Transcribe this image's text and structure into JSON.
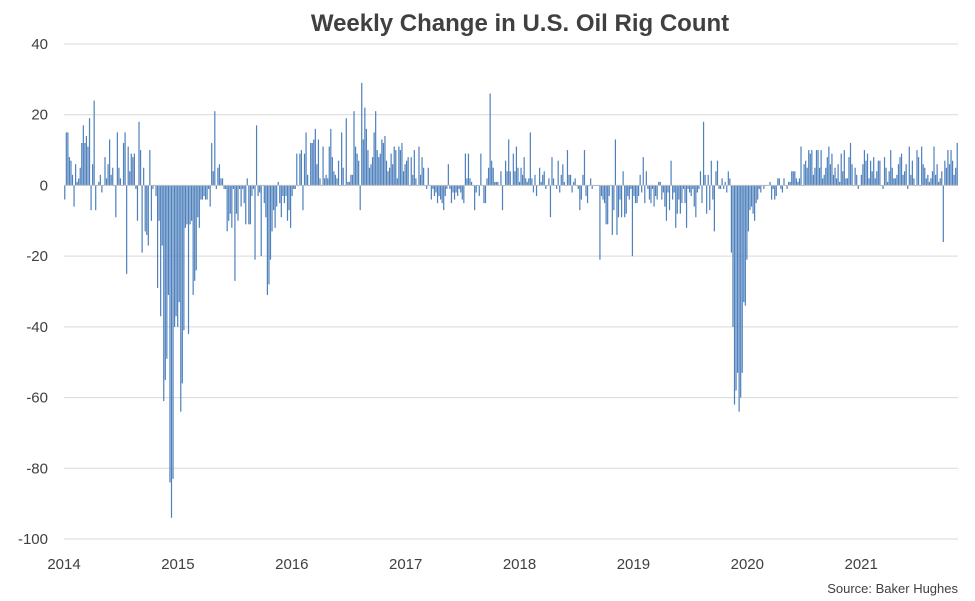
{
  "chart_data": {
    "type": "bar",
    "title": "Weekly Change in U.S. Oil Rig Count",
    "source": "Source: Baker Hughes",
    "xlabel": "",
    "ylabel": "",
    "ylim": [
      -100,
      40
    ],
    "yticks": [
      40,
      20,
      0,
      -20,
      -40,
      -60,
      -80,
      -100
    ],
    "ytick_labels": [
      "40",
      "20",
      "0",
      "-20",
      "-40",
      "-60",
      "-80",
      "-100"
    ],
    "xticks": [
      "2014",
      "2015",
      "2016",
      "2017",
      "2018",
      "2019",
      "2020",
      "2021"
    ],
    "grid": true,
    "legend": "none",
    "colors": {
      "bar": "#4f81bd",
      "grid": "#d9d9d9",
      "axis": "#bfbfbf",
      "text": "#404040"
    },
    "x_start": "2014-01-03",
    "x_interval": "weekly",
    "values": [
      -4,
      15,
      15,
      8,
      7,
      3,
      -6,
      6,
      1,
      2,
      5,
      12,
      17,
      12,
      14,
      11,
      19,
      -7,
      6,
      24,
      -7,
      0,
      1,
      3,
      -2,
      0,
      8,
      2,
      6,
      13,
      3,
      5,
      0,
      -9,
      15,
      5,
      2,
      0,
      12,
      15,
      -25,
      11,
      4,
      9,
      8,
      9,
      -1,
      -10,
      18,
      10,
      -19,
      5,
      -13,
      -14,
      -17,
      10,
      -10,
      -1,
      0,
      -3,
      -29,
      -10,
      -37,
      -17,
      -61,
      -55,
      -49,
      -31,
      -84,
      -94,
      -83,
      -40,
      -37,
      -40,
      -33,
      -64,
      -56,
      -41,
      -12,
      -11,
      -42,
      -11,
      -10,
      -31,
      -27,
      -24,
      -9,
      -12,
      -4,
      -4,
      -3,
      -4,
      -4,
      -1,
      -6,
      12,
      4,
      21,
      -1,
      5,
      6,
      2,
      2,
      -1,
      -1,
      -13,
      -10,
      -8,
      -12,
      -1,
      -27,
      -8,
      -10,
      -1,
      -6,
      -1,
      -5,
      -11,
      2,
      -11,
      -11,
      -3,
      -1,
      -21,
      17,
      -3,
      -2,
      -20,
      0,
      -5,
      -9,
      -31,
      -28,
      -21,
      -13,
      -7,
      -12,
      -6,
      1,
      -5,
      -9,
      -3,
      -5,
      -3,
      -10,
      -7,
      -12,
      -3,
      -1,
      -1,
      9,
      0,
      9,
      10,
      -7,
      9,
      15,
      3,
      0,
      12,
      12,
      13,
      16,
      6,
      13,
      2,
      0,
      11,
      2,
      3,
      2,
      11,
      16,
      8,
      4,
      3,
      2,
      7,
      0,
      15,
      5,
      0,
      19,
      1,
      1,
      3,
      3,
      21,
      11,
      9,
      7,
      -7,
      29,
      13,
      22,
      16,
      10,
      5,
      6,
      8,
      15,
      21,
      10,
      8,
      9,
      13,
      12,
      14,
      7,
      4,
      5,
      9,
      6,
      11,
      10,
      2,
      11,
      10,
      12,
      4,
      6,
      7,
      8,
      0,
      8,
      3,
      10,
      2,
      0,
      11,
      3,
      8,
      5,
      0,
      -1,
      5,
      0,
      -4,
      -1,
      -3,
      -2,
      -5,
      -3,
      -4,
      -5,
      -7,
      -3,
      -1,
      6,
      -1,
      -5,
      -2,
      -4,
      -2,
      -3,
      -1,
      -2,
      -4,
      -5,
      9,
      2,
      9,
      2,
      1,
      0,
      -7,
      -2,
      0,
      -3,
      9,
      0,
      -5,
      -5,
      2,
      5,
      26,
      7,
      5,
      1,
      1,
      1,
      0,
      4,
      -7,
      0,
      7,
      4,
      13,
      4,
      0,
      9,
      4,
      11,
      5,
      1,
      5,
      3,
      8,
      2,
      1,
      2,
      15,
      2,
      -2,
      3,
      -3,
      0,
      5,
      1,
      3,
      4,
      -1,
      0,
      2,
      -9,
      8,
      2,
      0,
      -1,
      7,
      -2,
      3,
      6,
      1,
      0,
      10,
      3,
      3,
      -2,
      1,
      2,
      0,
      -1,
      -7,
      -4,
      3,
      10,
      -3,
      -5,
      0,
      2,
      -1,
      0,
      0,
      0,
      0,
      -21,
      -3,
      -4,
      -5,
      -11,
      -11,
      -3,
      0,
      -14,
      -7,
      13,
      -14,
      -9,
      -4,
      -9,
      4,
      -9,
      -8,
      -3,
      -4,
      -1,
      -20,
      -3,
      -5,
      -5,
      -3,
      3,
      -2,
      8,
      -5,
      4,
      -1,
      -4,
      -5,
      -1,
      -6,
      -3,
      -4,
      1,
      1,
      -4,
      -2,
      -6,
      -10,
      -2,
      -7,
      7,
      -4,
      -2,
      -12,
      -8,
      -4,
      -8,
      -5,
      -1,
      -5,
      -12,
      -1,
      -2,
      -3,
      -1,
      -6,
      -9,
      -2,
      -1,
      4,
      -5,
      18,
      3,
      -8,
      3,
      -7,
      7,
      -4,
      -13,
      4,
      7,
      -1,
      -1,
      2,
      -1,
      1,
      -2,
      4,
      2,
      -19,
      -40,
      -62,
      -58,
      -53,
      -64,
      -60,
      -53,
      -33,
      -34,
      -21,
      -13,
      -7,
      -6,
      -8,
      -10,
      -5,
      -4,
      -1,
      -2,
      0,
      -1,
      0,
      0,
      0,
      1,
      -4,
      -1,
      -4,
      -3,
      2,
      2,
      -1,
      -2,
      2,
      0,
      -1,
      1,
      1,
      4,
      4,
      4,
      2,
      1,
      2,
      11,
      0,
      6,
      7,
      5,
      10,
      9,
      10,
      3,
      5,
      10,
      10,
      5,
      10,
      2,
      3,
      5,
      8,
      11,
      6,
      9,
      3,
      5,
      2,
      6,
      1,
      9,
      4,
      10,
      2,
      2,
      8,
      12,
      6,
      0,
      5,
      3,
      -1,
      0,
      3,
      6,
      10,
      7,
      9,
      2,
      7,
      4,
      8,
      2,
      4,
      7,
      7,
      0,
      -1,
      8,
      5,
      1,
      4,
      10,
      5,
      2,
      2,
      3,
      6,
      8,
      9,
      3,
      4,
      6,
      -1,
      11,
      3,
      7,
      2,
      0,
      10,
      8,
      0,
      11,
      6,
      5,
      2,
      3,
      1,
      2,
      4,
      11,
      3,
      6,
      1,
      2,
      4,
      -16,
      7,
      5,
      10,
      6,
      10,
      7,
      3,
      5,
      12
    ]
  }
}
